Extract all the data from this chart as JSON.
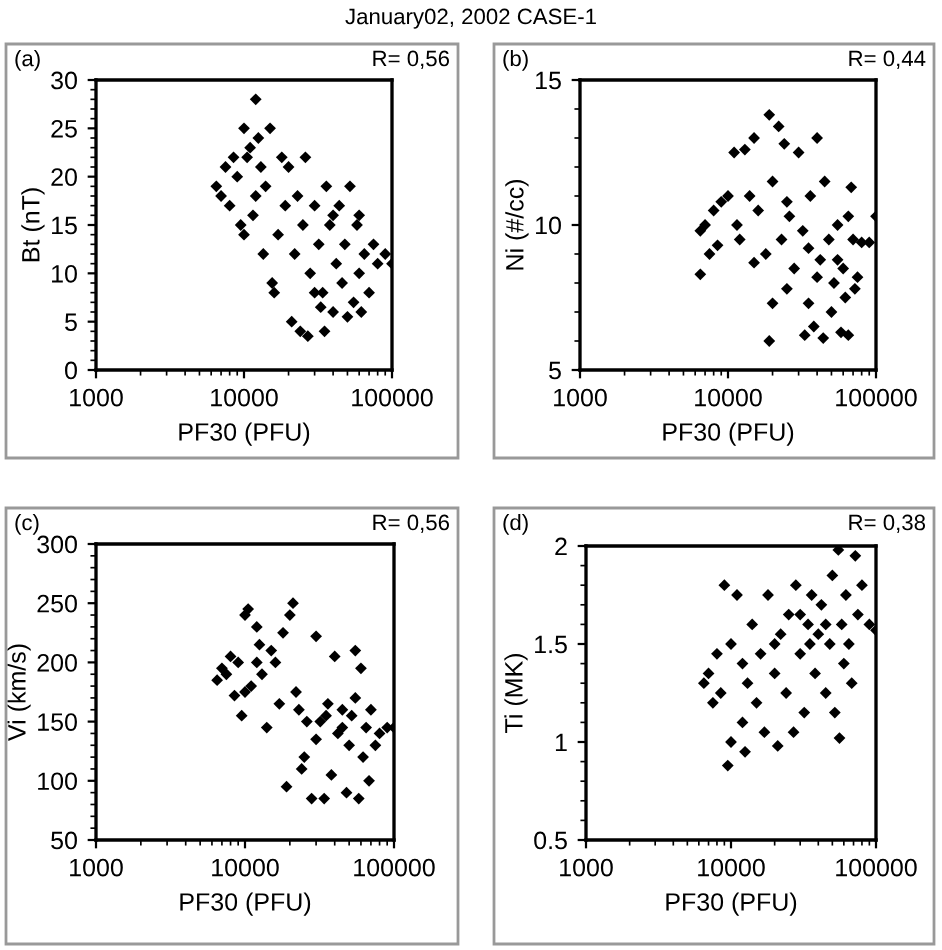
{
  "chart_data": [
    {
      "type": "scatter",
      "title": "January02, 2002 CASE-1",
      "xlabel": "PF30 (PFU)",
      "ylabel": "Bt (nT)",
      "annotations": [
        "(a)",
        "R= 0,56"
      ],
      "log": "x",
      "xlim": [
        1000,
        100000
      ],
      "xticks": [
        1000,
        10000,
        100000
      ],
      "ylim": [
        0,
        30
      ],
      "yticks": [
        0,
        5,
        10,
        15,
        20,
        25,
        30
      ],
      "marker": "diamond",
      "color": "#000000",
      "grid": false,
      "x": [
        6500,
        7000,
        7500,
        8000,
        8500,
        9000,
        9500,
        10000,
        10500,
        11000,
        11500,
        12000,
        12500,
        13000,
        13500,
        14000,
        15000,
        15500,
        16000,
        17000,
        18000,
        19000,
        20000,
        21000,
        22000,
        23000,
        24000,
        25000,
        26000,
        27000,
        28000,
        30000,
        32000,
        34000,
        35000,
        36000,
        38000,
        40000,
        42000,
        44000,
        46000,
        48000,
        50000,
        52000,
        55000,
        58000,
        60000,
        62000,
        65000,
        70000,
        75000,
        80000,
        90000,
        100000,
        12000,
        10000,
        30000,
        40000,
        33000,
        60000
      ],
      "values": [
        19,
        18,
        21,
        17,
        22,
        20,
        15,
        25,
        22,
        23,
        16,
        28,
        24,
        21,
        12,
        19,
        25,
        9,
        8,
        14,
        22,
        17,
        21,
        5,
        12,
        18,
        4,
        15,
        22,
        3.5,
        10,
        17,
        13,
        8,
        4,
        19,
        15,
        6,
        11,
        17,
        9,
        13,
        5.5,
        19,
        7,
        15,
        10,
        6,
        12,
        8,
        13,
        11,
        12,
        11,
        18,
        14,
        8,
        16,
        6.5,
        16
      ]
    },
    {
      "type": "scatter",
      "xlabel": "PF30 (PFU)",
      "ylabel": "Ni (#/cc)",
      "annotations": [
        "(b)",
        "R= 0,44"
      ],
      "log": "x",
      "xlim": [
        1000,
        100000
      ],
      "xticks": [
        1000,
        10000,
        100000
      ],
      "ylim": [
        5,
        15
      ],
      "yticks": [
        5,
        10,
        15
      ],
      "marker": "diamond",
      "color": "#000000",
      "grid": false,
      "x": [
        6500,
        6500,
        7000,
        7500,
        8000,
        8500,
        9000,
        10000,
        11000,
        11500,
        12000,
        13000,
        14000,
        15000,
        16000,
        18000,
        19000,
        20000,
        20000,
        19000,
        22000,
        23000,
        24000,
        25000,
        26000,
        28000,
        30000,
        32000,
        33000,
        35000,
        36000,
        38000,
        40000,
        42000,
        44000,
        45000,
        48000,
        50000,
        52000,
        55000,
        58000,
        60000,
        62000,
        65000,
        68000,
        70000,
        72000,
        75000,
        80000,
        90000,
        100000,
        15000,
        25000,
        40000,
        35000,
        55000,
        65000
      ],
      "values": [
        8.3,
        9.8,
        10,
        9,
        10.5,
        9.3,
        10.8,
        11,
        12.5,
        10,
        9.5,
        12.6,
        11,
        13,
        10.5,
        9,
        13.8,
        11.5,
        7.3,
        6,
        13.4,
        9.5,
        12.8,
        7.8,
        10.3,
        8.5,
        12.5,
        9.8,
        6.2,
        7.3,
        11,
        6.5,
        13,
        8.8,
        6.1,
        11.5,
        9.5,
        7,
        8,
        10,
        6.3,
        8.5,
        7.5,
        6.2,
        11.3,
        9.5,
        7.8,
        8.2,
        9.4,
        9.4,
        10.3,
        8.7,
        10.8,
        8.2,
        9.2,
        8.8,
        10.3
      ]
    },
    {
      "type": "scatter",
      "xlabel": "PF30 (PFU)",
      "ylabel": "Vi (km/s)",
      "annotations": [
        "(c)",
        "R= 0,56"
      ],
      "log": "x",
      "xlim": [
        1000,
        100000
      ],
      "xticks": [
        1000,
        10000,
        100000
      ],
      "ylim": [
        50,
        300
      ],
      "yticks": [
        50,
        100,
        150,
        200,
        250,
        300
      ],
      "marker": "diamond",
      "color": "#000000",
      "grid": false,
      "x": [
        6500,
        7000,
        7500,
        8000,
        8500,
        9000,
        9500,
        10000,
        10500,
        11000,
        12000,
        12500,
        13000,
        14000,
        15000,
        16000,
        17000,
        18000,
        19000,
        20000,
        21000,
        22000,
        23000,
        24000,
        25000,
        26000,
        28000,
        30000,
        32000,
        34000,
        36000,
        38000,
        40000,
        42000,
        45000,
        48000,
        50000,
        52000,
        55000,
        58000,
        60000,
        62000,
        65000,
        68000,
        70000,
        75000,
        80000,
        90000,
        100000,
        35000,
        45000,
        55000,
        30000,
        12000,
        10000
      ],
      "values": [
        185,
        195,
        190,
        205,
        172,
        200,
        155,
        240,
        245,
        180,
        230,
        215,
        190,
        145,
        210,
        200,
        165,
        225,
        95,
        240,
        250,
        175,
        160,
        110,
        120,
        150,
        85,
        222,
        150,
        85,
        165,
        105,
        205,
        140,
        160,
        90,
        130,
        155,
        210,
        85,
        195,
        120,
        145,
        100,
        160,
        130,
        140,
        145,
        145,
        155,
        145,
        170,
        135,
        200,
        175
      ]
    },
    {
      "type": "scatter",
      "xlabel": "PF30 (PFU)",
      "ylabel": "Ti (MK)",
      "annotations": [
        "(d)",
        "R= 0,38"
      ],
      "log": "x",
      "xlim": [
        1000,
        100000
      ],
      "xticks": [
        1000,
        10000,
        100000
      ],
      "ylim": [
        0.5,
        2
      ],
      "yticks": [
        0.5,
        1,
        1.5,
        2
      ],
      "marker": "diamond",
      "color": "#000000",
      "grid": false,
      "x": [
        6500,
        7000,
        7500,
        8000,
        8500,
        9000,
        9500,
        10000,
        10000,
        11000,
        12000,
        12500,
        13000,
        14000,
        15000,
        16000,
        17000,
        18000,
        20000,
        21000,
        22000,
        24000,
        25000,
        27000,
        28000,
        30000,
        32000,
        34000,
        36000,
        38000,
        40000,
        42000,
        45000,
        48000,
        50000,
        52000,
        55000,
        56000,
        58000,
        60000,
        62000,
        65000,
        68000,
        72000,
        75000,
        80000,
        90000,
        100000,
        35000,
        45000,
        30000,
        20000,
        12000
      ],
      "values": [
        1.3,
        1.35,
        1.2,
        1.45,
        1.25,
        1.8,
        0.88,
        1.0,
        1.5,
        1.75,
        1.1,
        0.95,
        1.3,
        1.6,
        1.2,
        1.45,
        1.05,
        1.75,
        1.35,
        0.98,
        1.55,
        1.25,
        1.65,
        1.05,
        1.8,
        1.45,
        1.15,
        1.6,
        1.75,
        1.35,
        1.55,
        1.7,
        1.25,
        1.5,
        1.85,
        1.15,
        1.98,
        1.02,
        1.6,
        1.4,
        1.75,
        1.5,
        1.3,
        1.95,
        1.65,
        1.8,
        1.6,
        1.57,
        1.5,
        1.6,
        1.65,
        1.5,
        1.4
      ]
    }
  ]
}
